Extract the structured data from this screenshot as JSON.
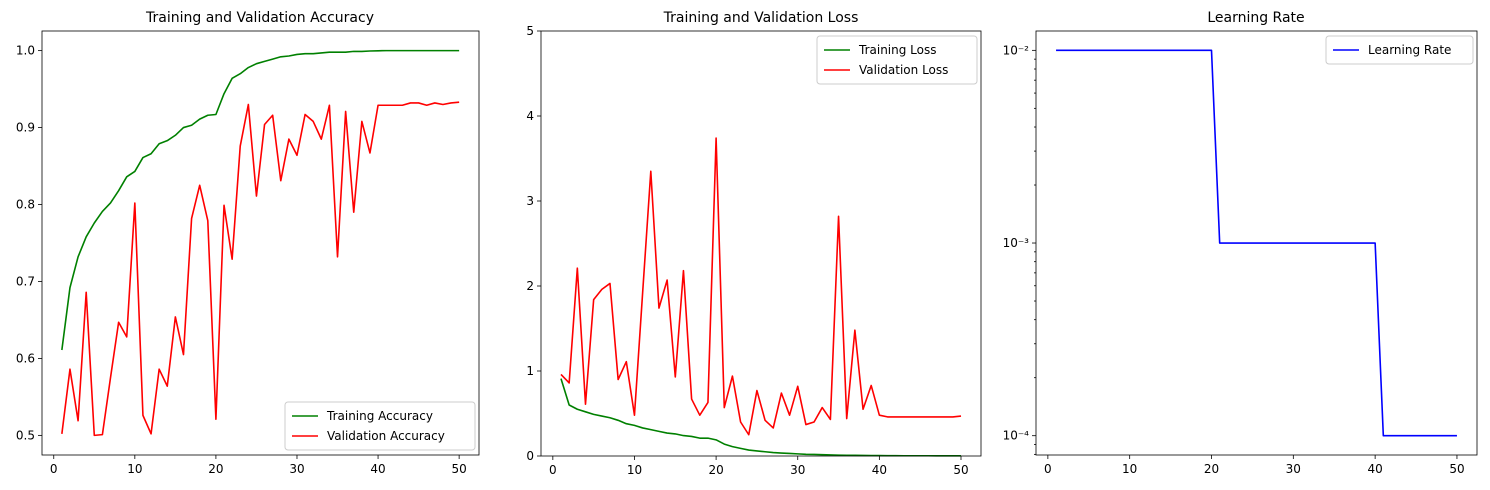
{
  "chart_data": [
    {
      "type": "line",
      "title": "Training and Validation Accuracy",
      "xlim": [
        -1.45,
        52.45
      ],
      "ylim": [
        0.4745,
        1.0255
      ],
      "xticks": [
        0,
        10,
        20,
        30,
        40,
        50
      ],
      "yticks": [
        0.5,
        0.6,
        0.7,
        0.8,
        0.9,
        1.0
      ],
      "ytick_labels": [
        "0.5",
        "0.6",
        "0.7",
        "0.8",
        "0.9",
        "1.0"
      ],
      "legend_loc": "lower-right",
      "x": [
        1,
        2,
        3,
        4,
        5,
        6,
        7,
        8,
        9,
        10,
        11,
        12,
        13,
        14,
        15,
        16,
        17,
        18,
        19,
        20,
        21,
        22,
        23,
        24,
        25,
        26,
        27,
        28,
        29,
        30,
        31,
        32,
        33,
        34,
        35,
        36,
        37,
        38,
        39,
        40,
        41,
        42,
        43,
        44,
        45,
        46,
        47,
        48,
        49,
        50
      ],
      "series": [
        {
          "name": "Training Accuracy",
          "color": "#008000",
          "values": [
            0.611,
            0.692,
            0.732,
            0.758,
            0.776,
            0.791,
            0.802,
            0.818,
            0.836,
            0.843,
            0.861,
            0.866,
            0.879,
            0.883,
            0.89,
            0.9,
            0.903,
            0.911,
            0.916,
            0.917,
            0.944,
            0.964,
            0.97,
            0.978,
            0.983,
            0.986,
            0.989,
            0.992,
            0.993,
            0.995,
            0.996,
            0.996,
            0.997,
            0.998,
            0.998,
            0.998,
            0.999,
            0.999,
            0.9995,
            0.9998,
            1.0,
            1.0,
            1.0,
            1.0,
            1.0,
            1.0,
            1.0,
            1.0,
            1.0,
            1.0
          ]
        },
        {
          "name": "Validation Accuracy",
          "color": "#ff0000",
          "values": [
            0.502,
            0.586,
            0.519,
            0.686,
            0.5,
            0.501,
            0.575,
            0.647,
            0.628,
            0.802,
            0.526,
            0.502,
            0.586,
            0.564,
            0.654,
            0.605,
            0.782,
            0.825,
            0.779,
            0.521,
            0.799,
            0.729,
            0.876,
            0.93,
            0.811,
            0.904,
            0.916,
            0.831,
            0.885,
            0.864,
            0.917,
            0.908,
            0.885,
            0.929,
            0.732,
            0.921,
            0.79,
            0.908,
            0.867,
            0.929,
            0.929,
            0.929,
            0.929,
            0.932,
            0.932,
            0.929,
            0.932,
            0.93,
            0.932,
            0.933
          ]
        }
      ]
    },
    {
      "type": "line",
      "title": "Training and Validation Loss",
      "xlim": [
        -1.45,
        52.45
      ],
      "ylim": [
        0,
        5
      ],
      "xticks": [
        0,
        10,
        20,
        30,
        40,
        50
      ],
      "yticks": [
        0,
        1,
        2,
        3,
        4,
        5
      ],
      "ytick_labels": [
        "0",
        "1",
        "2",
        "3",
        "4",
        "5"
      ],
      "legend_loc": "upper-right",
      "x": [
        1,
        2,
        3,
        4,
        5,
        6,
        7,
        8,
        9,
        10,
        11,
        12,
        13,
        14,
        15,
        16,
        17,
        18,
        19,
        20,
        21,
        22,
        23,
        24,
        25,
        26,
        27,
        28,
        29,
        30,
        31,
        32,
        33,
        34,
        35,
        36,
        37,
        38,
        39,
        40,
        41,
        42,
        43,
        44,
        45,
        46,
        47,
        48,
        49,
        50
      ],
      "series": [
        {
          "name": "Training Loss",
          "color": "#008000",
          "values": [
            0.91,
            0.6,
            0.55,
            0.52,
            0.49,
            0.47,
            0.45,
            0.42,
            0.38,
            0.36,
            0.33,
            0.31,
            0.29,
            0.27,
            0.26,
            0.24,
            0.23,
            0.21,
            0.21,
            0.19,
            0.14,
            0.11,
            0.09,
            0.07,
            0.06,
            0.05,
            0.04,
            0.035,
            0.03,
            0.025,
            0.02,
            0.018,
            0.015,
            0.012,
            0.01,
            0.009,
            0.008,
            0.007,
            0.006,
            0.005,
            0.004,
            0.004,
            0.003,
            0.003,
            0.003,
            0.003,
            0.002,
            0.002,
            0.002,
            0.002
          ]
        },
        {
          "name": "Validation Loss",
          "color": "#ff0000",
          "values": [
            0.96,
            0.86,
            2.21,
            0.61,
            1.84,
            1.96,
            2.03,
            0.9,
            1.11,
            0.48,
            1.92,
            3.35,
            1.74,
            2.07,
            0.93,
            2.18,
            0.67,
            0.48,
            0.63,
            3.74,
            0.57,
            0.94,
            0.4,
            0.25,
            0.77,
            0.42,
            0.33,
            0.74,
            0.48,
            0.82,
            0.37,
            0.4,
            0.57,
            0.43,
            2.82,
            0.44,
            1.48,
            0.55,
            0.83,
            0.48,
            0.46,
            0.46,
            0.46,
            0.46,
            0.46,
            0.46,
            0.46,
            0.46,
            0.46,
            0.47
          ]
        }
      ]
    },
    {
      "type": "line",
      "title": "Learning Rate",
      "log_y": true,
      "xlim": [
        -1.45,
        52.45
      ],
      "ylim": [
        7.94e-05,
        0.0126
      ],
      "xticks": [
        0,
        10,
        20,
        30,
        40,
        50
      ],
      "yticks": [
        0.0001,
        0.001,
        0.01
      ],
      "ytick_labels": [
        "10⁻⁴",
        "10⁻³",
        "10⁻²"
      ],
      "legend_loc": "upper-right",
      "x": [
        1,
        2,
        3,
        4,
        5,
        6,
        7,
        8,
        9,
        10,
        11,
        12,
        13,
        14,
        15,
        16,
        17,
        18,
        19,
        20,
        21,
        22,
        23,
        24,
        25,
        26,
        27,
        28,
        29,
        30,
        31,
        32,
        33,
        34,
        35,
        36,
        37,
        38,
        39,
        40,
        41,
        42,
        43,
        44,
        45,
        46,
        47,
        48,
        49,
        50
      ],
      "series": [
        {
          "name": "Learning Rate",
          "color": "#0000ff",
          "values": [
            0.01,
            0.01,
            0.01,
            0.01,
            0.01,
            0.01,
            0.01,
            0.01,
            0.01,
            0.01,
            0.01,
            0.01,
            0.01,
            0.01,
            0.01,
            0.01,
            0.01,
            0.01,
            0.01,
            0.01,
            0.001,
            0.001,
            0.001,
            0.001,
            0.001,
            0.001,
            0.001,
            0.001,
            0.001,
            0.001,
            0.001,
            0.001,
            0.001,
            0.001,
            0.001,
            0.001,
            0.001,
            0.001,
            0.001,
            0.001,
            0.0001,
            0.0001,
            0.0001,
            0.0001,
            0.0001,
            0.0001,
            0.0001,
            0.0001,
            0.0001,
            0.0001
          ]
        }
      ]
    }
  ]
}
